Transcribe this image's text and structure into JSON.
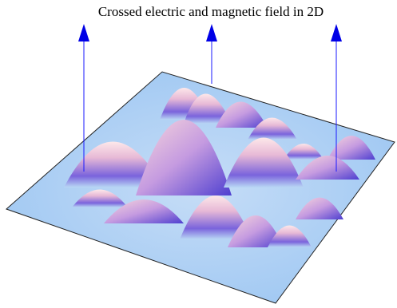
{
  "title": "Crossed electric and magnetic field in 2D"
}
